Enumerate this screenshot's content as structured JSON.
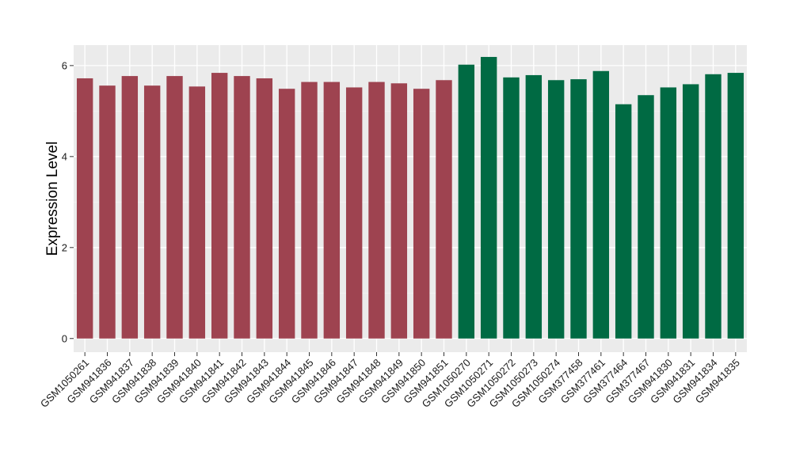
{
  "chart_data": {
    "type": "bar",
    "xlabel": "",
    "ylabel": "Expression Level",
    "ylim": [
      -0.3,
      6.45
    ],
    "yticks": [
      0,
      2,
      4,
      6
    ],
    "grid": true,
    "background": "#EBEBEB",
    "categories": [
      "GSM1050261",
      "GSM941836",
      "GSM941837",
      "GSM941838",
      "GSM941839",
      "GSM941840",
      "GSM941841",
      "GSM941842",
      "GSM941843",
      "GSM941844",
      "GSM941845",
      "GSM941846",
      "GSM941847",
      "GSM941848",
      "GSM941849",
      "GSM941850",
      "GSM941851",
      "GSM1050270",
      "GSM1050271",
      "GSM1050272",
      "GSM1050273",
      "GSM1050274",
      "GSM377458",
      "GSM377461",
      "GSM377464",
      "GSM377467",
      "GSM941830",
      "GSM941831",
      "GSM941834",
      "GSM941835"
    ],
    "values": [
      5.72,
      5.56,
      5.77,
      5.56,
      5.77,
      5.54,
      5.84,
      5.77,
      5.72,
      5.49,
      5.64,
      5.64,
      5.52,
      5.64,
      5.61,
      5.49,
      5.68,
      6.02,
      6.19,
      5.74,
      5.79,
      5.68,
      5.7,
      5.88,
      5.15,
      5.35,
      5.52,
      5.59,
      5.81,
      5.84
    ],
    "bar_colors": [
      "#9E4350",
      "#9E4350",
      "#9E4350",
      "#9E4350",
      "#9E4350",
      "#9E4350",
      "#9E4350",
      "#9E4350",
      "#9E4350",
      "#9E4350",
      "#9E4350",
      "#9E4350",
      "#9E4350",
      "#9E4350",
      "#9E4350",
      "#9E4350",
      "#9E4350",
      "#006A43",
      "#006A43",
      "#006A43",
      "#006A43",
      "#006A43",
      "#006A43",
      "#006A43",
      "#006A43",
      "#006A43",
      "#006A43",
      "#006A43",
      "#006A43",
      "#006A43"
    ]
  }
}
